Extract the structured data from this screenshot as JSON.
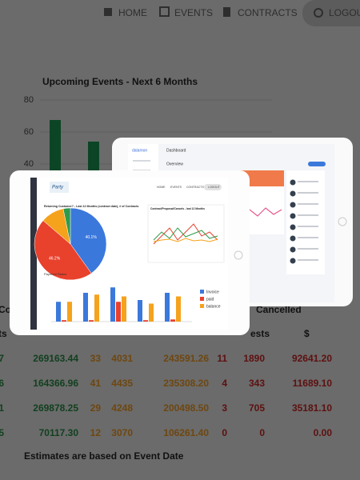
{
  "nav": {
    "items": [
      "HOME",
      "EVENTS",
      "CONTRACTS"
    ],
    "logout": "LOGOUT"
  },
  "background_chart": {
    "type": "bar",
    "title": "Upcoming Events - Next 6 Months",
    "values": [
      67.5,
      54
    ],
    "color": "#0c4526",
    "ylim": [
      20,
      92
    ],
    "yticks": [
      80,
      60,
      40
    ]
  },
  "table": {
    "header_top": [
      "Co",
      "Cancelled"
    ],
    "header_sub": [
      "ts",
      "ests",
      "$"
    ],
    "rows": [
      [
        "7",
        "269163.44",
        "33",
        "4031",
        "243591.26",
        "11",
        "1890",
        "92641.20"
      ],
      [
        "6",
        "164366.96",
        "41",
        "4435",
        "235308.20",
        "4",
        "343",
        "11689.10"
      ],
      [
        "1",
        "269878.25",
        "29",
        "4248",
        "200498.50",
        "3",
        "705",
        "35181.10"
      ],
      [
        "5",
        "70117.30",
        "12",
        "3070",
        "106261.40",
        "0",
        "0",
        "0.00"
      ]
    ],
    "footnote": "Estimates are based on Event Date"
  },
  "back_tablet": {
    "brand": "dalamon",
    "title": "Dashboard",
    "tab": "Overview"
  },
  "front_tablet": {
    "logo": "Party",
    "nav": [
      "HOME",
      "EVENTS",
      "CONTRACTS",
      "LOGOUT"
    ],
    "pie": {
      "title": "Returning Customer? - Last 12 Months (contract date), # of Contracts",
      "values": [
        40.1,
        46.2,
        10.5,
        3.2
      ],
      "value_labels": [
        "40.1%",
        "46.2%",
        null,
        null
      ],
      "colors": [
        "#3b78dc",
        "#e8412c",
        "#f5a21c",
        "#2e9b4a"
      ]
    },
    "line_title": "Contract/Proposal/Cancels - last 12 Months",
    "bars": {
      "title": "Payment Status",
      "ylim": [
        0,
        100
      ],
      "series": [
        {
          "name": "Invoice",
          "color": "#3b78dc",
          "values": [
            55,
            80,
            95,
            60,
            80
          ]
        },
        {
          "name": "paid",
          "color": "#e8412c",
          "values": [
            4,
            4,
            55,
            4,
            6
          ]
        },
        {
          "name": "balance",
          "color": "#f5a21c",
          "values": [
            55,
            75,
            70,
            50,
            70
          ]
        }
      ]
    }
  }
}
